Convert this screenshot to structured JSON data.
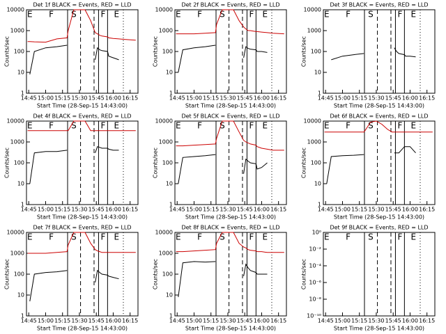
{
  "markers": {
    "lines": [
      {
        "x": 919.5,
        "style": "solid"
      },
      {
        "x": 931,
        "style": "dashed"
      },
      {
        "x": 943,
        "style": "dashed"
      },
      {
        "x": 947,
        "style": "solid"
      },
      {
        "x": 955,
        "style": "solid"
      },
      {
        "x": 969,
        "style": "dotted"
      }
    ],
    "letters": [
      {
        "x": 886,
        "label": "E"
      },
      {
        "x": 905,
        "label": "F"
      },
      {
        "x": 925,
        "label": "S"
      },
      {
        "x": 951,
        "label": "F"
      },
      {
        "x": 963,
        "label": "E"
      }
    ]
  },
  "chart_data": [
    {
      "type": "line",
      "title": "Det 1f BLACK = Events, RED = LLD",
      "ylabel": "Counts/sec",
      "xlabel": "Start Time (28-Sep-15 14:43:00)",
      "log_y": true,
      "x": [
        884,
        886,
        890,
        900,
        910,
        919,
        920,
        925,
        930,
        935,
        940,
        944,
        946,
        948,
        950,
        955,
        956,
        960,
        965,
        970,
        980
      ],
      "xlim": [
        883,
        982
      ],
      "xticks": [
        {
          "value": 885,
          "label": "14:45"
        },
        {
          "value": 900,
          "label": "15:00"
        },
        {
          "value": 915,
          "label": "15:15"
        },
        {
          "value": 930,
          "label": "15:30"
        },
        {
          "value": 945,
          "label": "15:45"
        },
        {
          "value": 960,
          "label": "16:00"
        },
        {
          "value": 975,
          "label": "16:15"
        }
      ],
      "ylim": [
        1,
        10000
      ],
      "yticks": [
        1,
        10,
        100,
        1000,
        10000
      ],
      "series": [
        {
          "name": "Events",
          "color": "#000000",
          "values": [
            null,
            8,
            100,
            150,
            170,
            200,
            null,
            null,
            null,
            null,
            null,
            40,
            150,
            120,
            110,
            100,
            60,
            50,
            40,
            null,
            null
          ]
        },
        {
          "name": "LLD",
          "color": "#cc0000",
          "values": [
            300,
            300,
            290,
            280,
            400,
            450,
            1000,
            10000,
            10000,
            10000,
            3000,
            800,
            700,
            600,
            550,
            500,
            450,
            420,
            400,
            380,
            350
          ]
        }
      ]
    },
    {
      "type": "line",
      "title": "Det 2f BLACK = Events, RED = LLD",
      "ylabel": "Counts/sec",
      "xlabel": "Start Time (28-Sep-15 14:43:00)",
      "log_y": true,
      "x": [
        884,
        886,
        890,
        900,
        910,
        919,
        920,
        925,
        930,
        935,
        940,
        944,
        946,
        948,
        950,
        955,
        956,
        960,
        965,
        970,
        980
      ],
      "xlim": [
        883,
        982
      ],
      "xticks": [
        {
          "value": 885,
          "label": "14:45"
        },
        {
          "value": 900,
          "label": "15:00"
        },
        {
          "value": 915,
          "label": "15:15"
        },
        {
          "value": 930,
          "label": "15:30"
        },
        {
          "value": 945,
          "label": "15:45"
        },
        {
          "value": 960,
          "label": "16:00"
        },
        {
          "value": 975,
          "label": "16:15"
        }
      ],
      "ylim": [
        1,
        10000
      ],
      "yticks": [
        1,
        10,
        100,
        1000,
        10000
      ],
      "series": [
        {
          "name": "Events",
          "color": "#000000",
          "values": [
            null,
            10,
            120,
            150,
            170,
            200,
            null,
            null,
            null,
            null,
            null,
            50,
            170,
            140,
            130,
            120,
            100,
            100,
            90,
            null,
            null
          ]
        },
        {
          "name": "LLD",
          "color": "#cc0000",
          "values": [
            700,
            700,
            700,
            700,
            750,
            800,
            2000,
            10000,
            10000,
            10000,
            3000,
            1500,
            1200,
            1000,
            1000,
            900,
            900,
            850,
            800,
            750,
            700
          ]
        }
      ]
    },
    {
      "type": "line",
      "title": "Det 3f BLACK = Events, RED = LLD",
      "ylabel": "Counts/sec",
      "xlabel": "Start Time (28-Sep-15 14:43:00)",
      "log_y": true,
      "x": [
        884,
        886,
        890,
        900,
        910,
        919,
        920,
        925,
        930,
        935,
        940,
        944,
        946,
        948,
        950,
        955,
        956,
        960,
        965,
        970,
        980
      ],
      "xlim": [
        883,
        982
      ],
      "xticks": [
        {
          "value": 885,
          "label": "14:45"
        },
        {
          "value": 900,
          "label": "15:00"
        },
        {
          "value": 915,
          "label": "15:15"
        },
        {
          "value": 930,
          "label": "15:30"
        },
        {
          "value": 945,
          "label": "15:45"
        },
        {
          "value": 960,
          "label": "16:00"
        },
        {
          "value": 975,
          "label": "16:15"
        }
      ],
      "ylim": [
        1,
        10000
      ],
      "yticks": [
        1,
        10,
        100,
        1000,
        10000
      ],
      "series": [
        {
          "name": "Events",
          "color": "#000000",
          "values": [
            null,
            null,
            40,
            60,
            70,
            80,
            null,
            null,
            null,
            null,
            null,
            null,
            150,
            100,
            80,
            70,
            60,
            60,
            55,
            null,
            null
          ]
        }
      ]
    },
    {
      "type": "line",
      "title": "Det 4f BLACK = Events, RED = LLD",
      "ylabel": "Counts/sec",
      "xlabel": "Start Time (28-Sep-15 14:43:00)",
      "log_y": true,
      "x": [
        884,
        886,
        890,
        900,
        910,
        919,
        920,
        925,
        930,
        935,
        940,
        944,
        946,
        948,
        950,
        955,
        956,
        960,
        965,
        970,
        980
      ],
      "xlim": [
        883,
        982
      ],
      "xticks": [
        {
          "value": 885,
          "label": "14:45"
        },
        {
          "value": 900,
          "label": "15:00"
        },
        {
          "value": 915,
          "label": "15:15"
        },
        {
          "value": 930,
          "label": "15:30"
        },
        {
          "value": 945,
          "label": "15:45"
        },
        {
          "value": 960,
          "label": "16:00"
        },
        {
          "value": 975,
          "label": "16:15"
        }
      ],
      "ylim": [
        1,
        10000
      ],
      "yticks": [
        1,
        10,
        100,
        1000,
        10000
      ],
      "series": [
        {
          "name": "Events",
          "color": "#000000",
          "values": [
            null,
            10,
            300,
            350,
            350,
            400,
            null,
            null,
            null,
            null,
            null,
            300,
            600,
            550,
            500,
            500,
            450,
            400,
            400,
            null,
            null
          ]
        },
        {
          "name": "LLD",
          "color": "#cc0000",
          "values": [
            3500,
            3500,
            3500,
            3500,
            3500,
            3500,
            3500,
            10000,
            10000,
            10000,
            3500,
            3500,
            3500,
            3500,
            3500,
            3500,
            3500,
            3500,
            3500,
            3500,
            3500
          ]
        }
      ]
    },
    {
      "type": "line",
      "title": "Det 5f BLACK = Events, RED = LLD",
      "ylabel": "Counts/sec",
      "xlabel": "Start Time (28-Sep-15 14:43:00)",
      "log_y": true,
      "x": [
        884,
        886,
        890,
        900,
        910,
        919,
        920,
        925,
        930,
        935,
        940,
        944,
        946,
        948,
        950,
        955,
        956,
        960,
        965,
        970,
        980
      ],
      "xlim": [
        883,
        982
      ],
      "xticks": [
        {
          "value": 885,
          "label": "14:45"
        },
        {
          "value": 900,
          "label": "15:00"
        },
        {
          "value": 915,
          "label": "15:15"
        },
        {
          "value": 930,
          "label": "15:30"
        },
        {
          "value": 945,
          "label": "15:45"
        },
        {
          "value": 960,
          "label": "16:00"
        },
        {
          "value": 975,
          "label": "16:15"
        }
      ],
      "ylim": [
        1,
        10000
      ],
      "yticks": [
        1,
        10,
        100,
        1000,
        10000
      ],
      "series": [
        {
          "name": "Events",
          "color": "#000000",
          "values": [
            null,
            10,
            180,
            200,
            220,
            250,
            null,
            null,
            null,
            null,
            null,
            30,
            150,
            120,
            100,
            90,
            50,
            60,
            100,
            null,
            null
          ]
        },
        {
          "name": "LLD",
          "color": "#cc0000",
          "values": [
            650,
            650,
            650,
            700,
            750,
            800,
            1500,
            10000,
            10000,
            10000,
            3000,
            1200,
            1000,
            900,
            800,
            700,
            600,
            500,
            450,
            400,
            400
          ]
        }
      ]
    },
    {
      "type": "line",
      "title": "Det 6f BLACK = Events, RED = LLD",
      "ylabel": "Counts/sec",
      "xlabel": "Start Time (28-Sep-15 14:43:00)",
      "log_y": true,
      "x": [
        884,
        886,
        890,
        900,
        910,
        919,
        920,
        925,
        930,
        935,
        940,
        944,
        946,
        948,
        950,
        955,
        956,
        960,
        965,
        970,
        980
      ],
      "xlim": [
        883,
        982
      ],
      "xticks": [
        {
          "value": 885,
          "label": "14:45"
        },
        {
          "value": 900,
          "label": "15:00"
        },
        {
          "value": 915,
          "label": "15:15"
        },
        {
          "value": 930,
          "label": "15:30"
        },
        {
          "value": 945,
          "label": "15:45"
        },
        {
          "value": 960,
          "label": "16:00"
        },
        {
          "value": 975,
          "label": "16:15"
        }
      ],
      "ylim": [
        1,
        10000
      ],
      "yticks": [
        1,
        10,
        100,
        1000,
        10000
      ],
      "series": [
        {
          "name": "Events",
          "color": "#000000",
          "values": [
            null,
            10,
            200,
            220,
            230,
            250,
            null,
            null,
            null,
            null,
            null,
            null,
            300,
            300,
            300,
            600,
            600,
            600,
            300,
            null,
            null
          ]
        },
        {
          "name": "LLD",
          "color": "#cc0000",
          "values": [
            3000,
            3000,
            3000,
            3000,
            3000,
            3000,
            3500,
            9000,
            10000,
            7000,
            4000,
            3000,
            3000,
            3000,
            3000,
            3000,
            3000,
            3000,
            3000,
            3000,
            3000
          ]
        }
      ]
    },
    {
      "type": "line",
      "title": "Det 7f BLACK = Events, RED = LLD",
      "ylabel": "Counts/sec",
      "xlabel": "Start Time (28-Sep-15 14:43:00)",
      "log_y": true,
      "x": [
        884,
        886,
        890,
        900,
        910,
        919,
        920,
        925,
        930,
        935,
        940,
        944,
        946,
        948,
        950,
        955,
        956,
        960,
        965,
        970,
        980
      ],
      "xlim": [
        883,
        982
      ],
      "xticks": [
        {
          "value": 885,
          "label": "14:45"
        },
        {
          "value": 900,
          "label": "15:00"
        },
        {
          "value": 915,
          "label": "15:15"
        },
        {
          "value": 930,
          "label": "15:30"
        },
        {
          "value": 945,
          "label": "15:45"
        },
        {
          "value": 960,
          "label": "16:00"
        },
        {
          "value": 975,
          "label": "16:15"
        }
      ],
      "ylim": [
        1,
        10000
      ],
      "yticks": [
        1,
        10,
        100,
        1000,
        10000
      ],
      "series": [
        {
          "name": "Events",
          "color": "#000000",
          "values": [
            null,
            5,
            100,
            120,
            130,
            150,
            null,
            null,
            null,
            null,
            null,
            40,
            150,
            120,
            100,
            90,
            80,
            70,
            60,
            null,
            null
          ]
        },
        {
          "name": "LLD",
          "color": "#cc0000",
          "values": [
            1000,
            1000,
            1000,
            1000,
            1100,
            1200,
            2500,
            10000,
            10000,
            10000,
            3000,
            1500,
            1300,
            1200,
            1100,
            1100,
            1100,
            1100,
            1100,
            1100,
            1100
          ]
        }
      ]
    },
    {
      "type": "line",
      "title": "Det 8f BLACK = Events, RED = LLD",
      "ylabel": "Counts/sec",
      "xlabel": "Start Time (28-Sep-15 14:43:00)",
      "log_y": true,
      "x": [
        884,
        886,
        890,
        900,
        910,
        919,
        920,
        925,
        930,
        935,
        940,
        944,
        946,
        948,
        950,
        955,
        956,
        960,
        965,
        970,
        980
      ],
      "xlim": [
        883,
        982
      ],
      "xticks": [
        {
          "value": 885,
          "label": "14:45"
        },
        {
          "value": 900,
          "label": "15:00"
        },
        {
          "value": 915,
          "label": "15:15"
        },
        {
          "value": 930,
          "label": "15:30"
        },
        {
          "value": 945,
          "label": "15:45"
        },
        {
          "value": 960,
          "label": "16:00"
        },
        {
          "value": 975,
          "label": "16:15"
        }
      ],
      "ylim": [
        1,
        10000
      ],
      "yticks": [
        1,
        10,
        100,
        1000,
        10000
      ],
      "series": [
        {
          "name": "Events",
          "color": "#000000",
          "values": [
            null,
            8,
            350,
            400,
            380,
            400,
            null,
            null,
            null,
            null,
            null,
            80,
            300,
            200,
            150,
            120,
            100,
            100,
            100,
            null,
            null
          ]
        },
        {
          "name": "LLD",
          "color": "#cc0000",
          "values": [
            1200,
            1200,
            1200,
            1300,
            1400,
            1500,
            3000,
            10000,
            10000,
            10000,
            3000,
            2000,
            1800,
            1500,
            1400,
            1300,
            1200,
            1200,
            1100,
            1100,
            1100
          ]
        }
      ]
    },
    {
      "type": "line",
      "title": "Det 9f BLACK = Events, RED = LLD",
      "ylabel": "Counts/sec",
      "xlabel": "Start Time (28-Sep-15 14:43:00)",
      "log_y": true,
      "x": [],
      "xlim": [
        883,
        982
      ],
      "xticks": [
        {
          "value": 885,
          "label": "14:45"
        },
        {
          "value": 900,
          "label": "15:00"
        },
        {
          "value": 915,
          "label": "15:15"
        },
        {
          "value": 930,
          "label": "15:30"
        },
        {
          "value": 945,
          "label": "15:45"
        },
        {
          "value": 960,
          "label": "16:00"
        },
        {
          "value": 975,
          "label": "16:15"
        }
      ],
      "ylim": [
        1e-10,
        1
      ],
      "yticks": [
        {
          "value": 1,
          "label": "10⁰"
        },
        {
          "value": 0.01,
          "label": "10⁻²"
        },
        {
          "value": 0.0001,
          "label": "10⁻⁴"
        },
        {
          "value": 1e-06,
          "label": "10⁻⁶"
        },
        {
          "value": 1e-08,
          "label": "10⁻⁸"
        },
        {
          "value": 1e-10,
          "label": "10⁻¹⁰"
        }
      ],
      "series": []
    }
  ]
}
